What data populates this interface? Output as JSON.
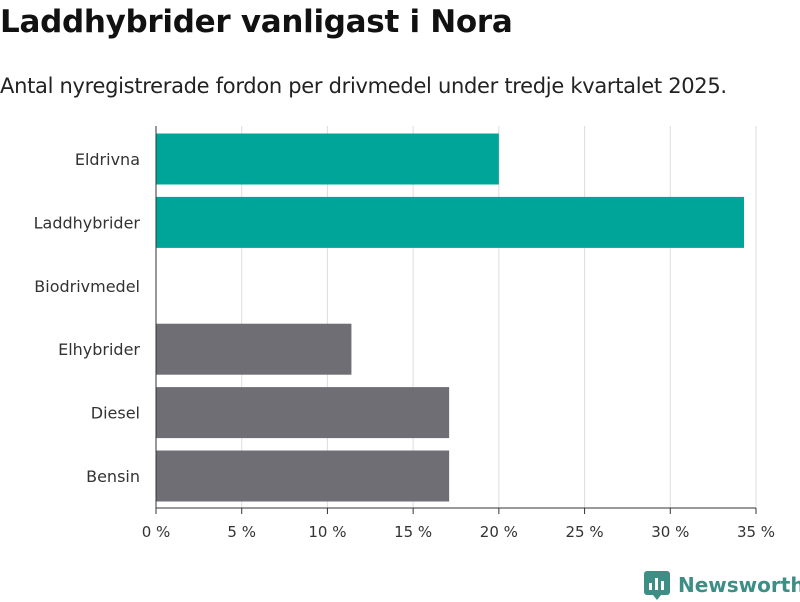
{
  "title": "Laddhybrider vanligast i Nora",
  "subtitle": "Antal nyregistrerade fordon per drivmedel under tredje kvartalet 2025.",
  "brand": "Newsworthy",
  "colors": {
    "highlight": "#00a59a",
    "default": "#6f6e74",
    "grid": "#dddddd",
    "axis": "#333333",
    "brand": "#3d8f86"
  },
  "chart_data": {
    "type": "bar",
    "orientation": "horizontal",
    "title": "Laddhybrider vanligast i Nora",
    "subtitle": "Antal nyregistrerade fordon per drivmedel under tredje kvartalet 2025.",
    "categories": [
      "Eldrivna",
      "Laddhybrider",
      "Biodrivmedel",
      "Elhybrider",
      "Diesel",
      "Bensin"
    ],
    "values": [
      20.0,
      34.3,
      0,
      11.4,
      17.1,
      17.1
    ],
    "highlighted": [
      true,
      true,
      false,
      false,
      false,
      false
    ],
    "unit": "%",
    "xlim": [
      0,
      35
    ],
    "ticks": [
      0,
      5,
      10,
      15,
      20,
      25,
      30,
      35
    ],
    "tick_labels": [
      "0 %",
      "5 %",
      "10 %",
      "15 %",
      "20 %",
      "25 %",
      "30 %",
      "35 %"
    ],
    "grid": true,
    "legend": "none"
  }
}
